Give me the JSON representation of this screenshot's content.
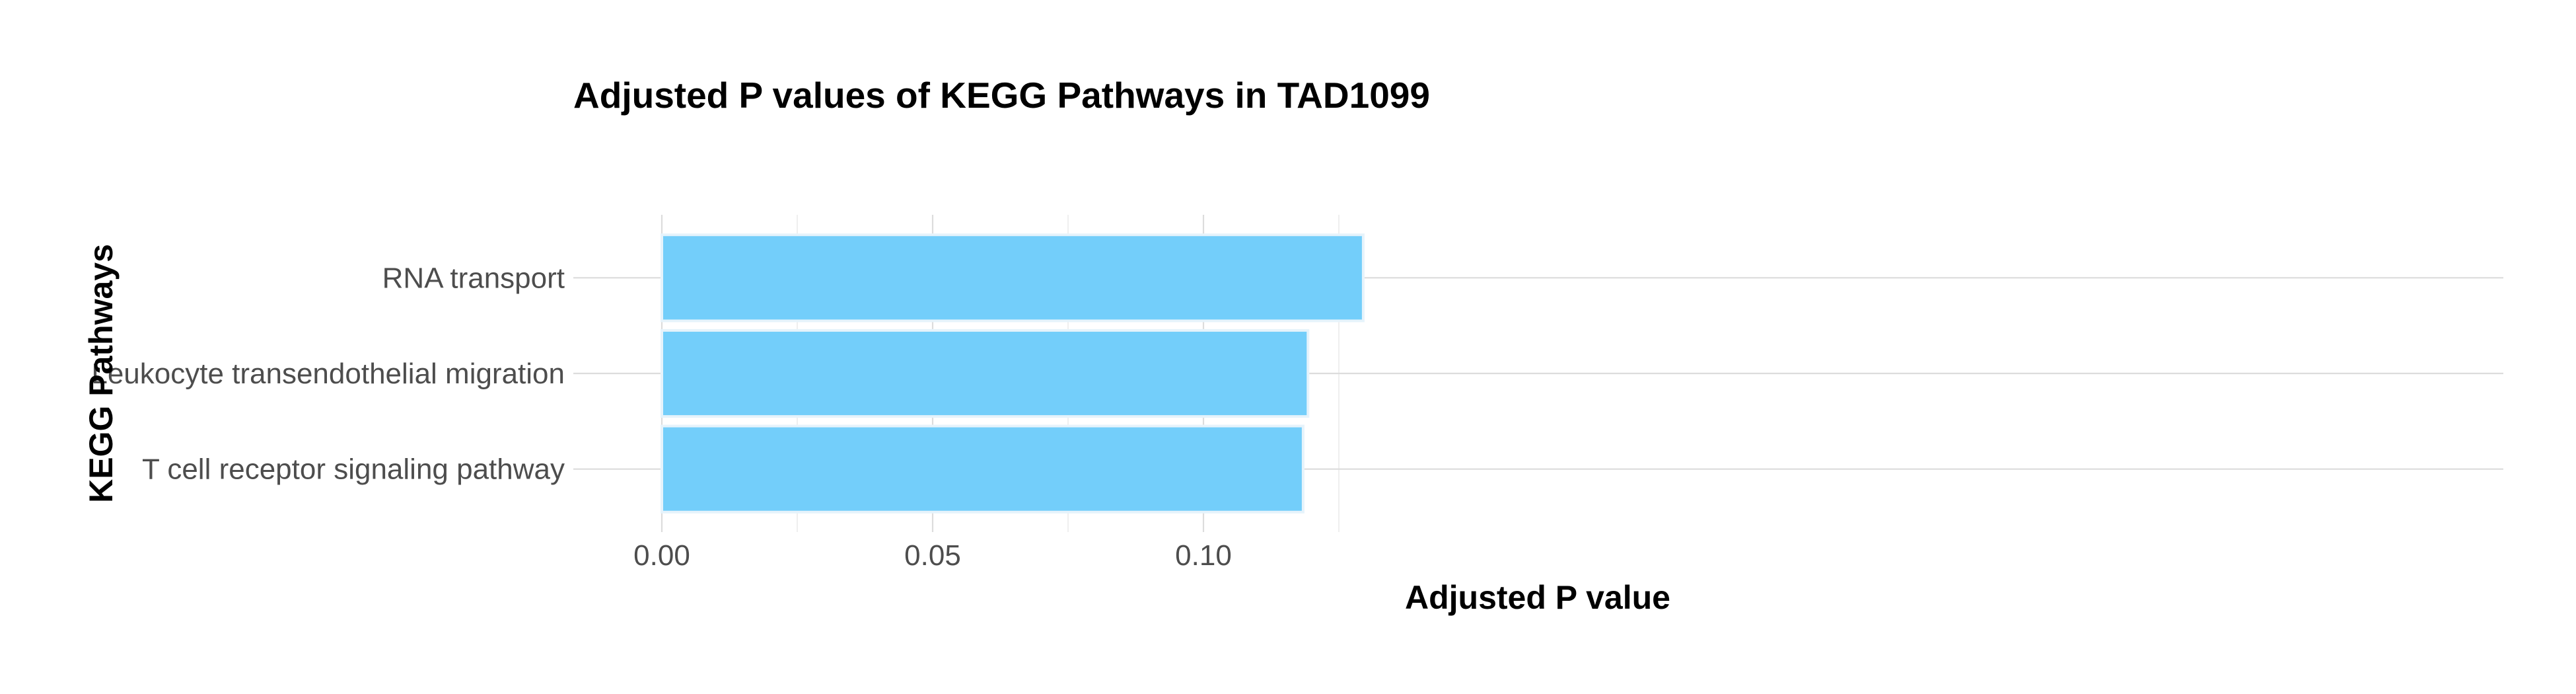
{
  "chart_data": {
    "type": "bar",
    "orientation": "horizontal",
    "title": "Adjusted P values of KEGG Pathways in TAD1099",
    "xlabel": "Adjusted P value",
    "ylabel": "KEGG Pathways",
    "categories": [
      "RNA transport",
      "Leukocyte transendothelial migration",
      "T cell receptor signaling pathway"
    ],
    "values": [
      0.1295,
      0.1193,
      0.1184
    ],
    "xlim": [
      0,
      0.136
    ],
    "x_ticks": [
      0.0,
      0.05,
      0.1
    ],
    "x_tick_labels": [
      "0.00",
      "0.05",
      "0.10"
    ],
    "bar_color": "#73cefa",
    "grid": true,
    "legend": "none"
  }
}
